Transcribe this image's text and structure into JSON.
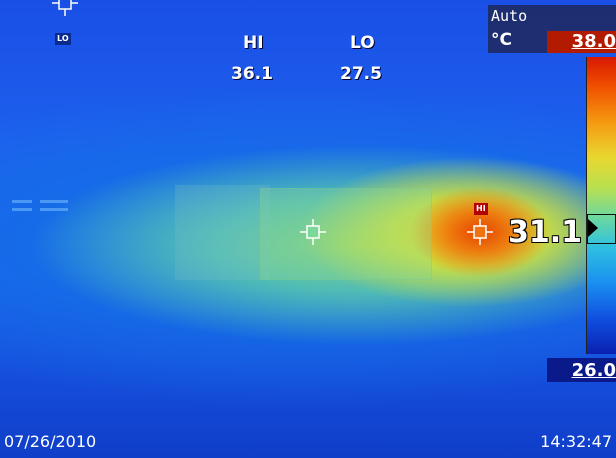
{
  "readout": {
    "hi_label": "HI",
    "lo_label": "LO",
    "hi_value": "36.1",
    "lo_value": "27.5"
  },
  "scale": {
    "mode": "Auto",
    "unit": "°C",
    "max": "38.0",
    "min": "26.0",
    "colors": {
      "max_box": "#b31b00",
      "min_box": "#0a1a8a"
    }
  },
  "spot": {
    "value": "31.1"
  },
  "markers": {
    "hi_tag": "HI",
    "lo_tag": "LO"
  },
  "footer": {
    "date": "07/26/2010",
    "time": "14:32:47"
  },
  "icons": {
    "center": "crosshair-icon",
    "hot": "crosshair-icon",
    "cold": "crosshair-icon"
  }
}
